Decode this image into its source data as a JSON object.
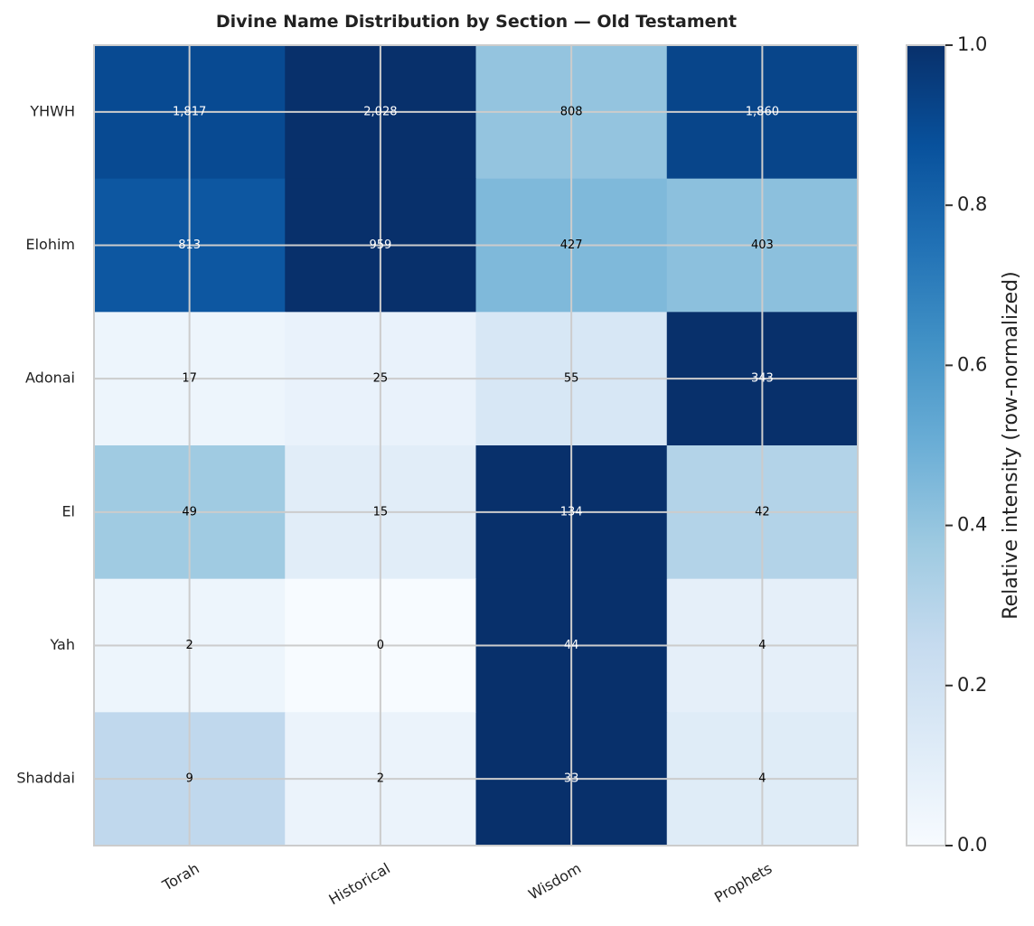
{
  "chart_data": {
    "type": "heatmap",
    "title": "Divine Name Distribution by Section — Old Testament",
    "rows": [
      "YHWH",
      "Elohim",
      "Adonai",
      "El",
      "Yah",
      "Shaddai"
    ],
    "columns": [
      "Torah",
      "Historical",
      "Wisdom",
      "Prophets"
    ],
    "cell_labels": [
      [
        "1,817",
        "2,028",
        "808",
        "1,860"
      ],
      [
        "813",
        "959",
        "427",
        "403"
      ],
      [
        "17",
        "25",
        "55",
        "343"
      ],
      [
        "49",
        "15",
        "134",
        "42"
      ],
      [
        "2",
        "0",
        "44",
        "4"
      ],
      [
        "9",
        "2",
        "33",
        "4"
      ]
    ],
    "intensity": [
      [
        0.9,
        1.0,
        0.4,
        0.92
      ],
      [
        0.85,
        1.0,
        0.45,
        0.42
      ],
      [
        0.05,
        0.07,
        0.16,
        1.0
      ],
      [
        0.37,
        0.11,
        1.0,
        0.31
      ],
      [
        0.05,
        0.0,
        1.0,
        0.09
      ],
      [
        0.27,
        0.06,
        1.0,
        0.12
      ]
    ],
    "colormap": "Blues",
    "colorbar": {
      "label": "Relative intensity (row-normalized)",
      "range": [
        0,
        1
      ],
      "ticks": [
        "0.0",
        "0.2",
        "0.4",
        "0.6",
        "0.8",
        "1.0"
      ]
    },
    "grid": true
  }
}
